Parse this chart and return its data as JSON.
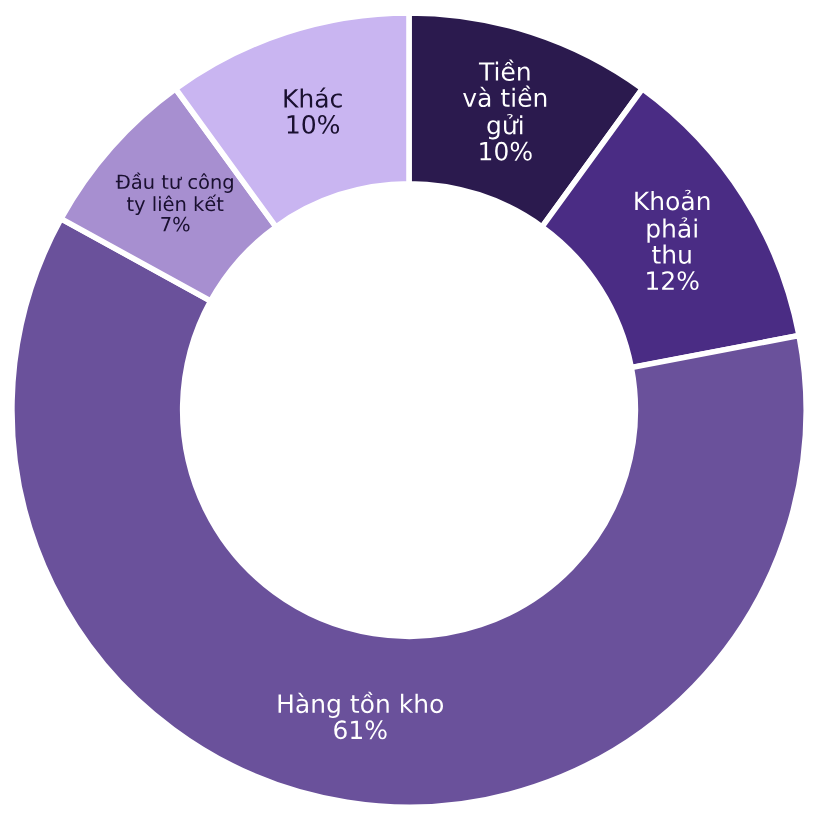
{
  "chart_data": {
    "type": "donut",
    "categories": [
      "Tiền\nvà tiền\ngửi",
      "Khoản\nphải\nthu",
      "Hàng tồn kho",
      "Đầu tư công\nty liên kết",
      "Khác"
    ],
    "values": [
      10,
      12,
      61,
      7,
      10
    ],
    "value_labels": [
      "10%",
      "12%",
      "61%",
      "7%",
      "10%"
    ],
    "colors": [
      "#2b1a4e",
      "#4a2c84",
      "#6a519b",
      "#a78fd0",
      "#c9b5f1"
    ],
    "legend": false
  }
}
